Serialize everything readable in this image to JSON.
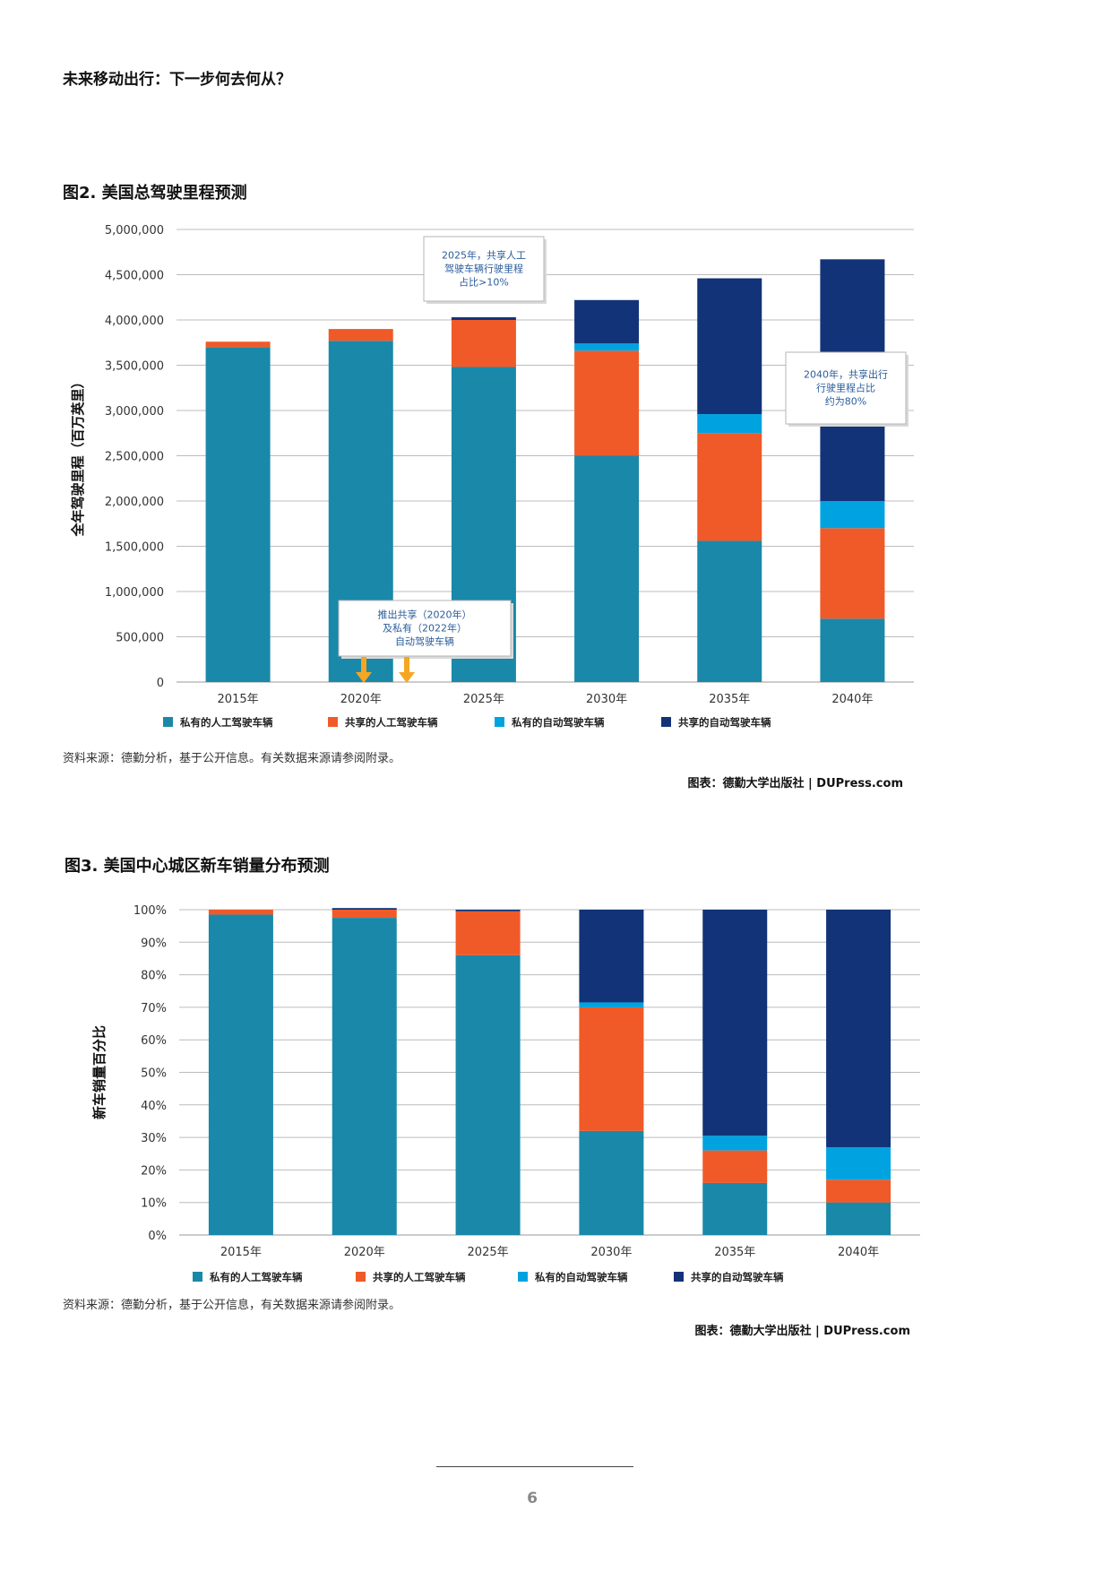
{
  "header": {
    "running_head": "未来移动出行：下一步何去何从？"
  },
  "colors": {
    "private_manual": "#1a88a9",
    "shared_manual": "#f05a28",
    "private_av": "#00a3e0",
    "shared_av": "#123378",
    "callout_arrow": "#f5a623"
  },
  "figure2": {
    "title": "图2. 美国总驾驶里程预测",
    "source": "资料来源：德勤分析，基于公开信息。有关数据来源请参阅附录。",
    "credit": "图表：德勤大学出版社 | DUPress.com",
    "annotations": [
      {
        "id": "note-2025",
        "lines": [
          "2025年，共享人工",
          "驾驶车辆行驶里程",
          "占比>10%"
        ]
      },
      {
        "id": "note-2040",
        "lines": [
          "2040年，共享出行",
          "行驶里程占比",
          "约为80%"
        ]
      },
      {
        "id": "note-launch",
        "lines": [
          "推出共享（2020年）",
          "及私有（2022年）",
          "自动驾驶车辆"
        ]
      }
    ],
    "chart_data": {
      "type": "bar",
      "stacked": true,
      "title": "图2. 美国总驾驶里程预测",
      "categories": [
        "2015年",
        "2020年",
        "2025年",
        "2030年",
        "2035年",
        "2040年"
      ],
      "ylabel": "全年驾驶里程（百万英里）",
      "ylim": [
        0,
        5000000
      ],
      "yticks": [
        0,
        500000,
        1000000,
        1500000,
        2000000,
        2500000,
        3000000,
        3500000,
        4000000,
        4500000,
        5000000
      ],
      "ytick_labels": [
        "0",
        "500,000",
        "1,000,000",
        "1,500,000",
        "2,000,000",
        "2,500,000",
        "3,000,000",
        "3,500,000",
        "4,000,000",
        "4,500,000",
        "5,000,000"
      ],
      "grid": true,
      "legend_position": "bottom",
      "series": [
        {
          "name": "私有的人工驾驶车辆",
          "values": [
            3700000,
            3770000,
            3480000,
            2500000,
            1560000,
            700000
          ]
        },
        {
          "name": "共享的人工驾驶车辆",
          "values": [
            60000,
            130000,
            520000,
            1160000,
            1190000,
            1000000
          ]
        },
        {
          "name": "私有的自动驾驶车辆",
          "values": [
            0,
            0,
            0,
            80000,
            210000,
            300000
          ]
        },
        {
          "name": "共享的自动驾驶车辆",
          "values": [
            0,
            0,
            30000,
            480000,
            1500000,
            2670000
          ]
        }
      ]
    }
  },
  "figure3": {
    "title": "图3. 美国中心城区新车销量分布预测",
    "source": "资料来源：德勤分析，基于公开信息，有关数据来源请参阅附录。",
    "credit": "图表：德勤大学出版社  |  DUPress.com",
    "chart_data": {
      "type": "bar",
      "stacked": true,
      "title": "图3. 美国中心城区新车销量分布预测",
      "categories": [
        "2015年",
        "2020年",
        "2025年",
        "2030年",
        "2035年",
        "2040年"
      ],
      "ylabel": "新车销量百分比",
      "ylim": [
        0,
        100
      ],
      "yticks": [
        0,
        10,
        20,
        30,
        40,
        50,
        60,
        70,
        80,
        90,
        100
      ],
      "ytick_labels": [
        "0%",
        "10%",
        "20%",
        "30%",
        "40%",
        "50%",
        "60%",
        "70%",
        "80%",
        "90%",
        "100%"
      ],
      "grid": true,
      "legend_position": "bottom",
      "series": [
        {
          "name": "私有的人工驾驶车辆",
          "values": [
            98.5,
            97.5,
            86,
            32,
            16,
            10
          ]
        },
        {
          "name": "共享的人工驾驶车辆",
          "values": [
            1.5,
            2.5,
            13.5,
            38,
            10,
            7
          ]
        },
        {
          "name": "私有的自动驾驶车辆",
          "values": [
            0,
            0,
            0,
            1.5,
            4.5,
            10
          ]
        },
        {
          "name": "共享的自动驾驶车辆",
          "values": [
            0,
            0.5,
            0.5,
            28.5,
            69.5,
            73
          ]
        }
      ]
    }
  },
  "footer": {
    "page_number": "6"
  }
}
